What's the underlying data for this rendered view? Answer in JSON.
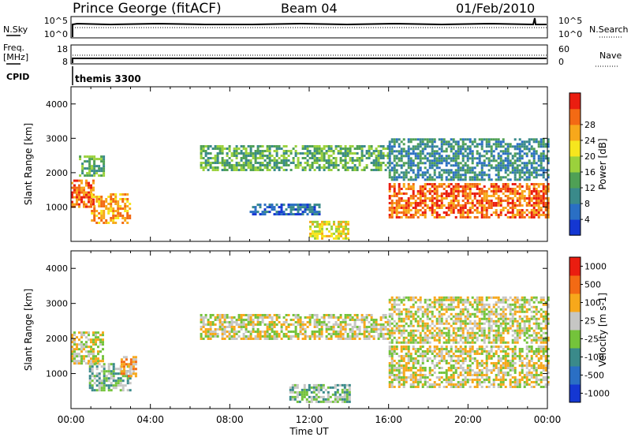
{
  "header": {
    "station": "Prince George (fitACF)",
    "beam": "Beam 04",
    "date": "01/Feb/2010"
  },
  "noise_panel": {
    "left_label": "N.Sky",
    "left_ticks": [
      "10^5",
      "10^0"
    ],
    "right_ticks": [
      "10^5",
      "10^0"
    ],
    "right_label": "N.Search"
  },
  "freq_panel": {
    "left_label_line1": "Freq.",
    "left_label_line2": "[MHz]",
    "left_ticks": [
      "18",
      "8"
    ],
    "right_ticks": [
      "60",
      "0"
    ],
    "right_label": "Nave"
  },
  "cpid_panel": {
    "label": "CPID",
    "program": "themis 3300"
  },
  "colors": {
    "power": [
      "#1437d2",
      "#2a6fc4",
      "#3a8a8a",
      "#4fa055",
      "#9bd13c",
      "#f6e61e",
      "#f7a81b",
      "#f36a14",
      "#ea1d10"
    ],
    "velocity": [
      "#1437d2",
      "#2a6fc4",
      "#3a8a8a",
      "#74c33b",
      "#c6c6c4",
      "#f7a81b",
      "#f36a14",
      "#ea1d10"
    ]
  },
  "chart_data": [
    {
      "type": "heatmap",
      "parameter": "power",
      "ylabel": "Slant Range [km]",
      "ylim": [
        0,
        4500
      ],
      "y_ticks": [
        "1000",
        "2000",
        "3000",
        "4000"
      ],
      "x_ticks": [
        "00:00",
        "04:00",
        "08:00",
        "12:00",
        "16:00",
        "20:00",
        "00:00"
      ],
      "colorbar": {
        "label": "Power [dB]",
        "ticks": [
          "4",
          "8",
          "12",
          "16",
          "20",
          "24",
          "28"
        ]
      },
      "regions": [
        {
          "t0": 0.0,
          "t1": 1.1,
          "r0": 1000,
          "r1": 1800,
          "level": 7
        },
        {
          "t0": 0.4,
          "t1": 1.6,
          "r0": 1900,
          "r1": 2500,
          "level": 3
        },
        {
          "t0": 1.0,
          "t1": 3.0,
          "r0": 550,
          "r1": 1400,
          "level": 6
        },
        {
          "t0": 6.5,
          "t1": 16.0,
          "r0": 2100,
          "r1": 2800,
          "level": 3
        },
        {
          "t0": 9.0,
          "t1": 12.5,
          "r0": 800,
          "r1": 1100,
          "level": 1
        },
        {
          "t0": 12.0,
          "t1": 14.0,
          "r0": 100,
          "r1": 600,
          "level": 5
        },
        {
          "t0": 16.0,
          "t1": 24.0,
          "r0": 700,
          "r1": 1700,
          "level": 7
        },
        {
          "t0": 16.0,
          "t1": 24.0,
          "r0": 1800,
          "r1": 3000,
          "level": 2
        }
      ]
    },
    {
      "type": "heatmap",
      "parameter": "velocity",
      "ylabel": "Slant Range [km]",
      "xlabel": "Time UT",
      "ylim": [
        0,
        4500
      ],
      "y_ticks": [
        "1000",
        "2000",
        "3000",
        "4000"
      ],
      "x_ticks": [
        "00:00",
        "04:00",
        "08:00",
        "12:00",
        "16:00",
        "20:00",
        "00:00"
      ],
      "colorbar": {
        "label": "Velocity [m s-1]",
        "ticks": [
          "1000",
          "500",
          "100",
          "25",
          "-25",
          "-100",
          "-500",
          "-1000"
        ]
      },
      "regions": [
        {
          "t0": 0.0,
          "t1": 1.6,
          "r0": 1300,
          "r1": 2200,
          "level": 4
        },
        {
          "t0": 0.9,
          "t1": 3.0,
          "r0": 500,
          "r1": 1300,
          "level": 3
        },
        {
          "t0": 2.5,
          "t1": 3.3,
          "r0": 900,
          "r1": 1500,
          "level": 5
        },
        {
          "t0": 6.5,
          "t1": 16.0,
          "r0": 2000,
          "r1": 2700,
          "level": 4
        },
        {
          "t0": 11.0,
          "t1": 14.0,
          "r0": 200,
          "r1": 700,
          "level": 3
        },
        {
          "t0": 16.0,
          "t1": 24.0,
          "r0": 600,
          "r1": 1800,
          "level": 4
        },
        {
          "t0": 16.0,
          "t1": 24.0,
          "r0": 1900,
          "r1": 3200,
          "level": 4
        }
      ]
    }
  ]
}
